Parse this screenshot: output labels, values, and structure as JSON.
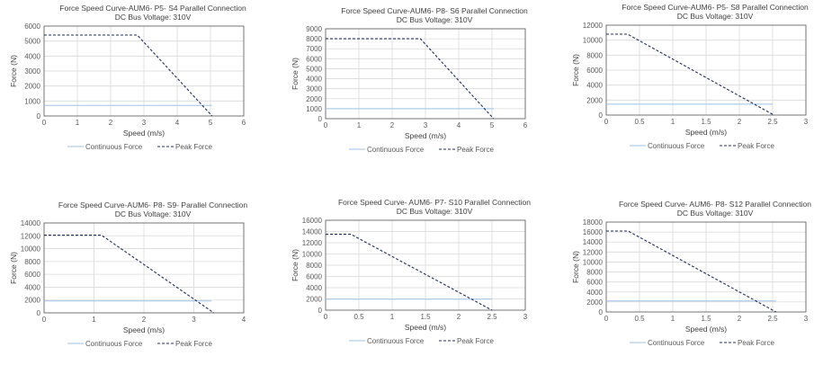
{
  "chart_data": [
    {
      "type": "line",
      "title": "Force Speed Curve-AUM6- P5- S4 Parallel Connection",
      "subtitle": "DC Bus Voltage: 310V",
      "xlabel": "Speed (m/s)",
      "ylabel": "Force (N)",
      "xlim": [
        0,
        6
      ],
      "xticks": [
        0,
        1,
        2,
        3,
        4,
        5,
        6
      ],
      "ylim": [
        0,
        6000
      ],
      "yticks": [
        0,
        1000,
        2000,
        3000,
        4000,
        5000,
        6000
      ],
      "grid": true,
      "legend_position": "bottom",
      "series": [
        {
          "name": "Continuous Force",
          "color": "#9dc3e6",
          "dash": "solid",
          "points": [
            [
              0,
              700
            ],
            [
              5.05,
              700
            ]
          ]
        },
        {
          "name": "Peak Force",
          "color": "#1f2d5c",
          "dash": "dashed",
          "points": [
            [
              0,
              5400
            ],
            [
              2.8,
              5400
            ],
            [
              5.05,
              0
            ]
          ]
        }
      ]
    },
    {
      "type": "line",
      "title": "Force Speed Curve-AUM6- P8- S6 Parallel Connection",
      "subtitle": "DC Bus Voltage: 310V",
      "xlabel": "Speed (m/s)",
      "ylabel": "Force (N)",
      "xlim": [
        0,
        6
      ],
      "xticks": [
        0,
        1,
        2,
        3,
        4,
        5,
        6
      ],
      "ylim": [
        0,
        9000
      ],
      "yticks": [
        0,
        1000,
        2000,
        3000,
        4000,
        5000,
        6000,
        7000,
        8000,
        9000
      ],
      "grid": true,
      "legend_position": "bottom",
      "series": [
        {
          "name": "Continuous Force",
          "color": "#9dc3e6",
          "dash": "solid",
          "points": [
            [
              0,
              1000
            ],
            [
              5.05,
              1000
            ]
          ]
        },
        {
          "name": "Peak Force",
          "color": "#1f2d5c",
          "dash": "dashed",
          "points": [
            [
              0,
              8000
            ],
            [
              2.85,
              8000
            ],
            [
              5.05,
              0
            ]
          ]
        }
      ]
    },
    {
      "type": "line",
      "title": "Force Speed Curve-AUM6- P5- S8 Parallel Connection",
      "subtitle": "DC Bus Voltage: 310V",
      "xlabel": "Speed (m/s)",
      "ylabel": "Force (N)",
      "xlim": [
        0,
        3
      ],
      "xticks": [
        0,
        0.5,
        1,
        1.5,
        2,
        2.5,
        3
      ],
      "ylim": [
        0,
        12000
      ],
      "yticks": [
        0,
        2000,
        4000,
        6000,
        8000,
        10000,
        12000
      ],
      "grid": true,
      "legend_position": "bottom",
      "series": [
        {
          "name": "Continuous Force",
          "color": "#9dc3e6",
          "dash": "solid",
          "points": [
            [
              0,
              1450
            ],
            [
              2.5,
              1450
            ]
          ]
        },
        {
          "name": "Peak Force",
          "color": "#1f2d5c",
          "dash": "dashed",
          "points": [
            [
              0,
              10800
            ],
            [
              0.32,
              10800
            ],
            [
              2.52,
              0
            ]
          ]
        }
      ]
    },
    {
      "type": "line",
      "title": "Force Speed Curve-AUM6- P8- S9- Parallel Connection",
      "subtitle": "DC Bus Voltage: 310V",
      "xlabel": "Speed (m/s)",
      "ylabel": "Force (N)",
      "xlim": [
        0,
        4
      ],
      "xticks": [
        0,
        1,
        2,
        3,
        4
      ],
      "ylim": [
        0,
        14000
      ],
      "yticks": [
        0,
        2000,
        4000,
        6000,
        8000,
        10000,
        12000,
        14000
      ],
      "grid": true,
      "legend_position": "bottom",
      "series": [
        {
          "name": "Continuous Force",
          "color": "#9dc3e6",
          "dash": "solid",
          "points": [
            [
              0,
              1850
            ],
            [
              3.35,
              1850
            ]
          ]
        },
        {
          "name": "Peak Force",
          "color": "#1f2d5c",
          "dash": "dashed",
          "points": [
            [
              0,
              12100
            ],
            [
              1.15,
              12100
            ],
            [
              3.4,
              0
            ]
          ]
        }
      ]
    },
    {
      "type": "line",
      "title": "Force Speed Curve- AUM6- P7- S10 Parallel Connection",
      "subtitle": "DC Bus Voltage: 310V",
      "xlabel": "Speed (m/s)",
      "ylabel": "Force (N)",
      "xlim": [
        0,
        3
      ],
      "xticks": [
        0,
        0.5,
        1,
        1.5,
        2,
        2.5,
        3
      ],
      "ylim": [
        0,
        16000
      ],
      "yticks": [
        0,
        2000,
        4000,
        6000,
        8000,
        10000,
        12000,
        14000,
        16000
      ],
      "grid": true,
      "legend_position": "bottom",
      "series": [
        {
          "name": "Continuous Force",
          "color": "#9dc3e6",
          "dash": "solid",
          "points": [
            [
              0,
              1950
            ],
            [
              2.5,
              1950
            ]
          ]
        },
        {
          "name": "Peak Force",
          "color": "#1f2d5c",
          "dash": "dashed",
          "points": [
            [
              0,
              13500
            ],
            [
              0.38,
              13500
            ],
            [
              2.5,
              0
            ]
          ]
        }
      ]
    },
    {
      "type": "line",
      "title": "Force Speed Curve- AUM6- P8- S12 Parallel Connection",
      "subtitle": "DC Bus Voltage: 310V",
      "xlabel": "Speed (m/s)",
      "ylabel": "Force (N)",
      "xlim": [
        0,
        3
      ],
      "xticks": [
        0,
        0.5,
        1,
        1.5,
        2,
        2.5,
        3
      ],
      "ylim": [
        0,
        18000
      ],
      "yticks": [
        0,
        2000,
        4000,
        6000,
        8000,
        10000,
        12000,
        14000,
        16000,
        18000
      ],
      "grid": true,
      "legend_position": "bottom",
      "series": [
        {
          "name": "Continuous Force",
          "color": "#9dc3e6",
          "dash": "solid",
          "points": [
            [
              0,
              2200
            ],
            [
              2.55,
              2200
            ]
          ]
        },
        {
          "name": "Peak Force",
          "color": "#1f2d5c",
          "dash": "dashed",
          "points": [
            [
              0,
              16200
            ],
            [
              0.33,
              16200
            ],
            [
              2.55,
              0
            ]
          ]
        }
      ]
    }
  ]
}
